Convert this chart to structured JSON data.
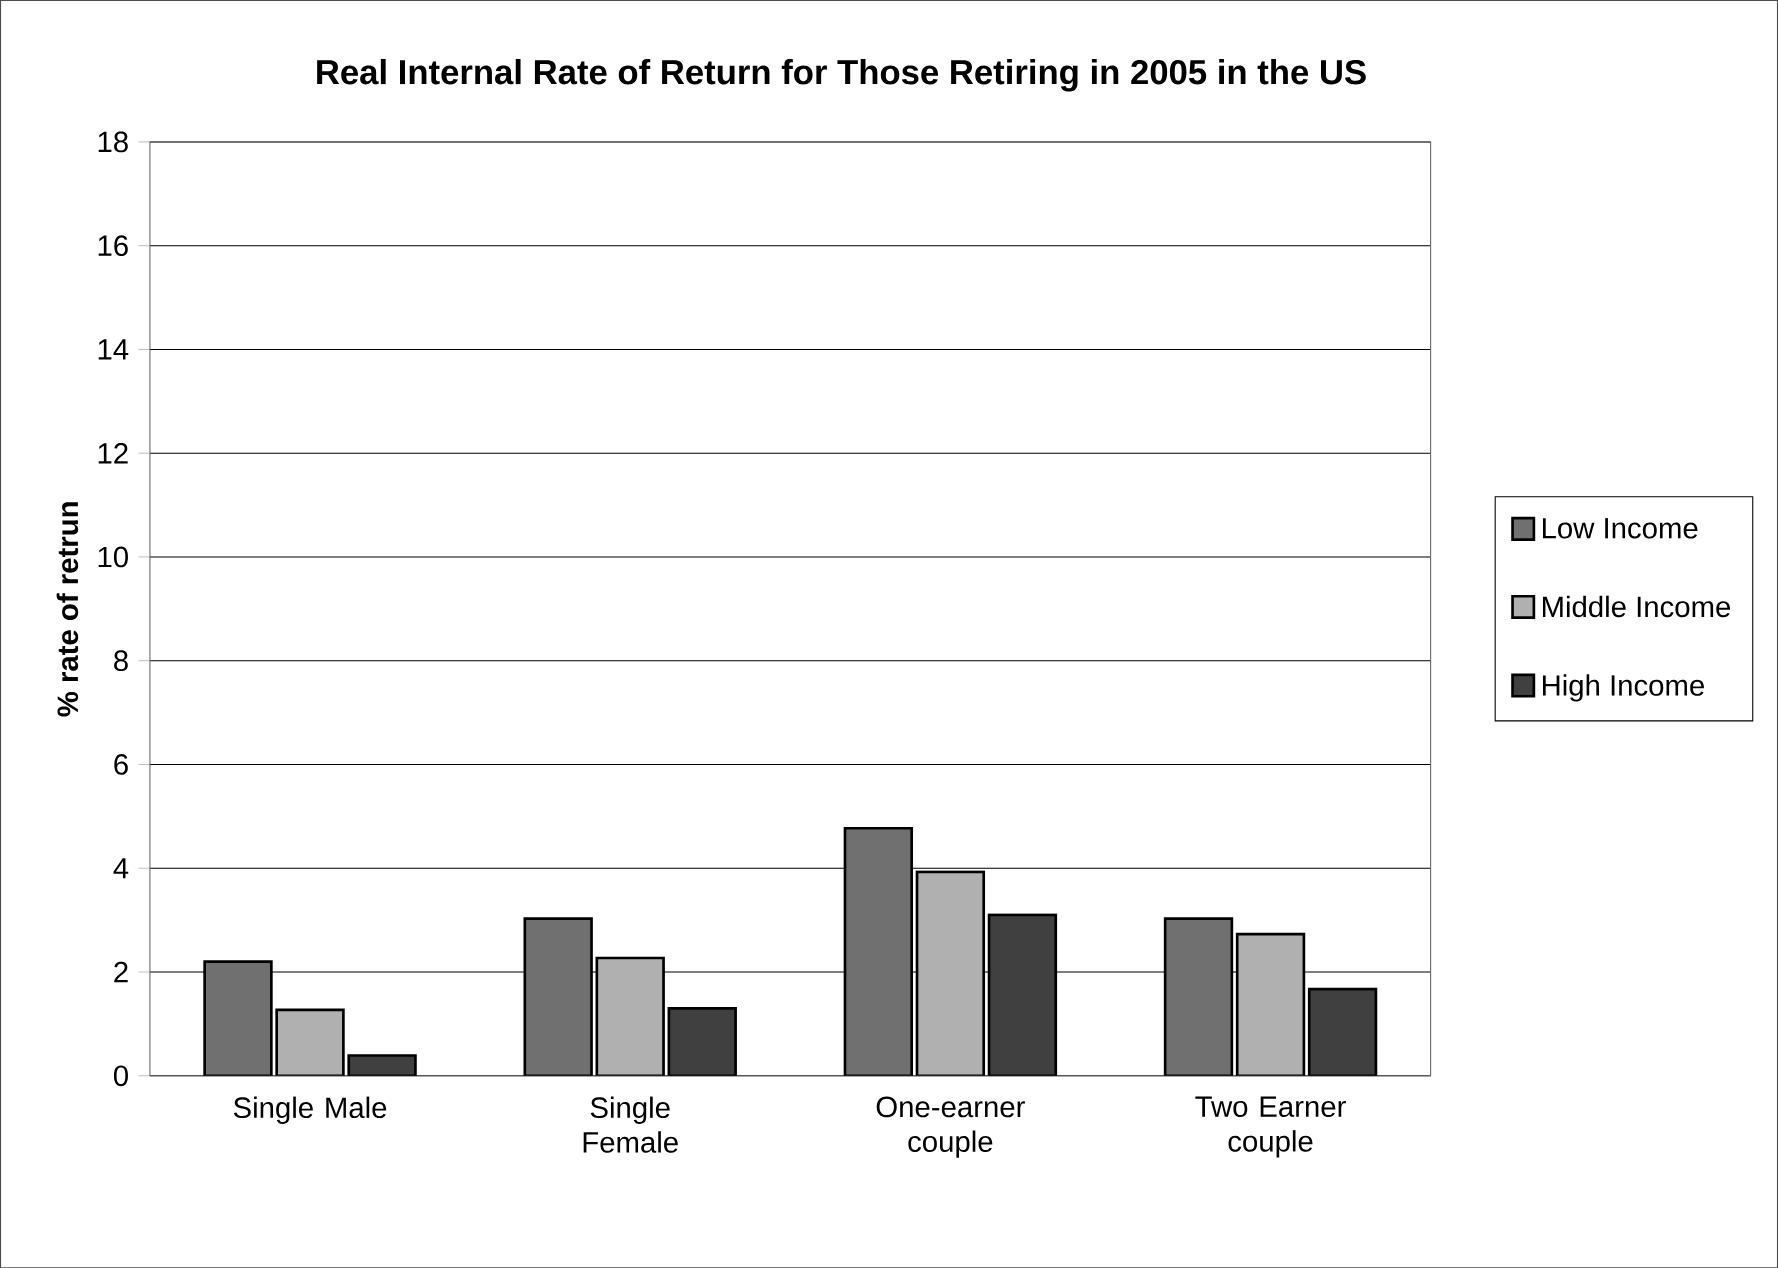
{
  "chart_data": {
    "type": "bar",
    "title": "Real Internal Rate of Return for Those Retiring in 2005 in the US",
    "ylabel": "% rate of retrun",
    "categories": [
      "Single Male",
      "Single Female",
      "One-earner couple",
      "Two Earner couple"
    ],
    "series": [
      {
        "name": "Low Income",
        "color": "#707070",
        "values": [
          2.2,
          3.03,
          4.77,
          3.03
        ]
      },
      {
        "name": "Middle Income",
        "color": "#b0b0b0",
        "values": [
          1.27,
          2.27,
          3.93,
          2.73
        ]
      },
      {
        "name": "High Income",
        "color": "#404040",
        "values": [
          0.39,
          1.3,
          3.1,
          1.67
        ]
      }
    ],
    "ylim": [
      0,
      18
    ],
    "yticks": [
      0,
      2,
      4,
      6,
      8,
      10,
      12,
      14,
      16,
      18
    ],
    "grid": "y",
    "legend": "right"
  }
}
